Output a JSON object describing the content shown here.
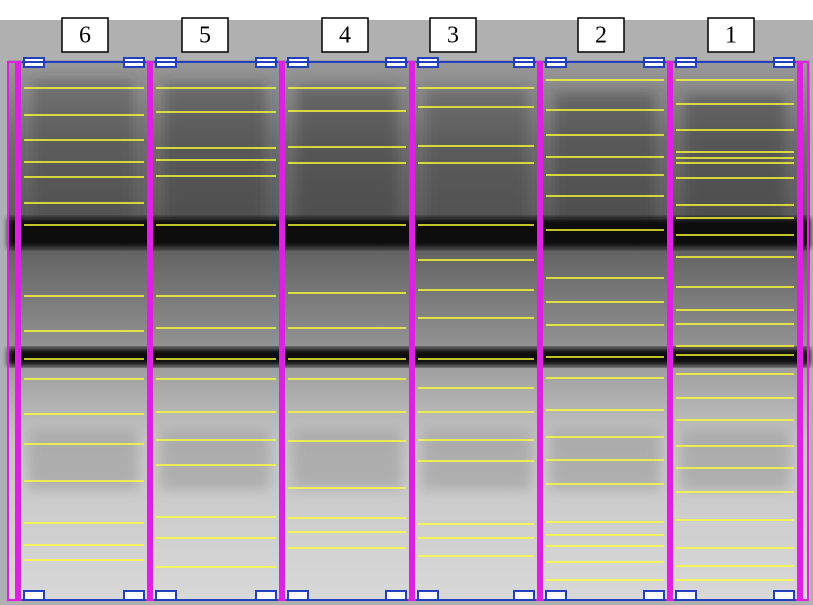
{
  "lanes": [
    {
      "label": "6"
    },
    {
      "label": "5"
    },
    {
      "label": "4"
    },
    {
      "label": "3"
    },
    {
      "label": "2"
    },
    {
      "label": "1"
    }
  ]
}
